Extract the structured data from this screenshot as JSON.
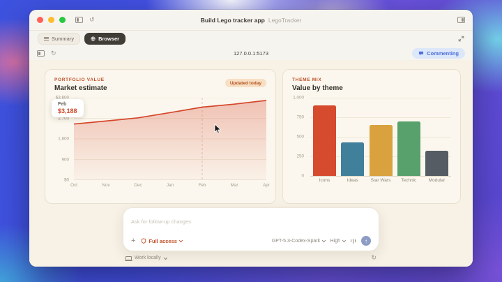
{
  "window": {
    "title": "Build Lego tracker app",
    "subtitle": "LegoTracker"
  },
  "tabs": [
    {
      "label": "Summary",
      "active": false
    },
    {
      "label": "Browser",
      "active": true
    }
  ],
  "address_bar": {
    "url": "127.0.0.1:5173"
  },
  "commenting": {
    "label": "Commenting"
  },
  "portfolio_card": {
    "eyebrow": "PORTFOLIO VALUE",
    "title": "Market estimate",
    "badge": "Updated today",
    "tooltip": {
      "label": "Feb",
      "value": "$3,188"
    },
    "chart_data": {
      "type": "area",
      "title": "Market estimate",
      "categories": [
        "Oct",
        "Nov",
        "Dec",
        "Jan",
        "Feb",
        "Mar",
        "Apr"
      ],
      "values": [
        2450,
        2580,
        2720,
        2950,
        3188,
        3320,
        3480
      ],
      "ylim": [
        0,
        3600
      ],
      "yticks": [
        {
          "value": 3600,
          "label": "$3,600"
        },
        {
          "value": 2700,
          "label": "2,700"
        },
        {
          "value": 1800,
          "label": "1,800"
        },
        {
          "value": 900,
          "label": "900"
        },
        {
          "value": 0,
          "label": "$0"
        }
      ],
      "line_color": "#d5452a",
      "marker_index": 4,
      "grid": true,
      "legend": false
    }
  },
  "theme_card": {
    "eyebrow": "THEME MIX",
    "title": "Value by theme",
    "chart_data": {
      "type": "bar",
      "title": "Value by theme",
      "categories": [
        "Icons",
        "Ideas",
        "Star Wars",
        "Technic",
        "Modular"
      ],
      "values": [
        900,
        430,
        650,
        700,
        320
      ],
      "colors": [
        "#d64a2e",
        "#41809a",
        "#d9a23e",
        "#58a06c",
        "#565c64"
      ],
      "ylim": [
        0,
        1000
      ],
      "yticks": [
        {
          "value": 1000,
          "label": "1,000"
        },
        {
          "value": 750,
          "label": "750"
        },
        {
          "value": 500,
          "label": "500"
        },
        {
          "value": 250,
          "label": "250"
        },
        {
          "value": 0,
          "label": "0"
        }
      ],
      "grid": true,
      "legend": false
    }
  },
  "composer": {
    "placeholder": "Ask for follow-up changes",
    "full_access_label": "Full access",
    "model": "GPT-5.3-Codex-Spark",
    "effort": "High"
  },
  "footer": {
    "work_locally": "Work locally"
  },
  "icons": {
    "history_glyph": "↺",
    "reload_glyph": "↻",
    "plus_glyph": "+",
    "send_arrow_glyph": "↑"
  },
  "colors": {
    "accent_orange": "#c2512a",
    "commenting_blue": "#4a6fd9",
    "content_bg": "#f7f1e6"
  }
}
